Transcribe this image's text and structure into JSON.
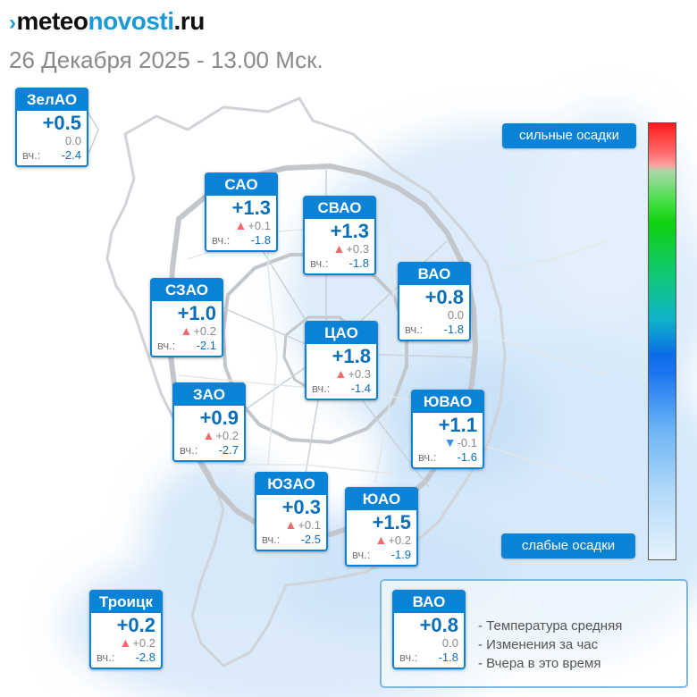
{
  "header": {
    "logo_mark": "›",
    "logo_part1": "meteo",
    "logo_part2": "novosti",
    "logo_part3": ".ru",
    "date": "26 Декабря 2025 - 13.00 Мск."
  },
  "colors": {
    "accent": "#0a83d6",
    "temp_text": "#0a6fb8",
    "arrow_up": "#f26b6b",
    "arrow_down": "#3b8fe0"
  },
  "districts": [
    {
      "name": "ЗелАО",
      "temp": "+0.5",
      "trend": "none",
      "change": "0.0",
      "yesterday_label": "вч.:",
      "yesterday": "-2.4"
    },
    {
      "name": "САО",
      "temp": "+1.3",
      "trend": "up",
      "change": "+0.1",
      "yesterday_label": "вч.:",
      "yesterday": "-1.8"
    },
    {
      "name": "СВАО",
      "temp": "+1.3",
      "trend": "up",
      "change": "+0.3",
      "yesterday_label": "вч.:",
      "yesterday": "-1.8"
    },
    {
      "name": "СЗАО",
      "temp": "+1.0",
      "trend": "up",
      "change": "+0.2",
      "yesterday_label": "вч.:",
      "yesterday": "-2.1"
    },
    {
      "name": "ВАО",
      "temp": "+0.8",
      "trend": "none",
      "change": "0.0",
      "yesterday_label": "вч.:",
      "yesterday": "-1.8"
    },
    {
      "name": "ЦАО",
      "temp": "+1.8",
      "trend": "up",
      "change": "+0.3",
      "yesterday_label": "вч.:",
      "yesterday": "-1.4"
    },
    {
      "name": "ЗАО",
      "temp": "+0.9",
      "trend": "up",
      "change": "+0.2",
      "yesterday_label": "вч.:",
      "yesterday": "-2.7"
    },
    {
      "name": "ЮВАО",
      "temp": "+1.1",
      "trend": "down",
      "change": "-0.1",
      "yesterday_label": "вч.:",
      "yesterday": "-1.6"
    },
    {
      "name": "ЮЗАО",
      "temp": "+0.3",
      "trend": "up",
      "change": "+0.1",
      "yesterday_label": "вч.:",
      "yesterday": "-2.5"
    },
    {
      "name": "ЮАО",
      "temp": "+1.5",
      "trend": "up",
      "change": "+0.2",
      "yesterday_label": "вч.:",
      "yesterday": "-1.9"
    },
    {
      "name": "Троицк",
      "temp": "+0.2",
      "trend": "up",
      "change": "+0.2",
      "yesterday_label": "вч.:",
      "yesterday": "-2.8"
    }
  ],
  "precip_scale": {
    "top_label": "сильные осадки",
    "bottom_label": "слабые осадки"
  },
  "legend": {
    "example": {
      "name": "ВАО",
      "temp": "+0.8",
      "trend": "none",
      "change": "0.0",
      "yesterday_label": "вч.:",
      "yesterday": "-1.8"
    },
    "items": [
      "- Температура средняя",
      "- Изменения за час",
      "- Вчера в это время"
    ]
  }
}
